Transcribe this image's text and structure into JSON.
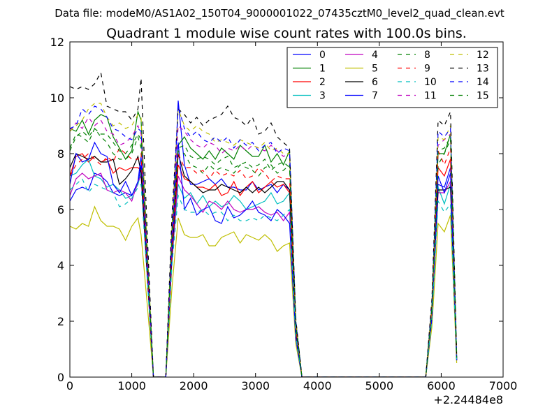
{
  "suptitle": "Data file: modeM0/AS1A02_150T04_9000001022_07435cztM0_level2_quad_clean.evt",
  "chart_data": {
    "type": "line",
    "title": "Quadrant 1 module wise count rates with 100.0s bins.",
    "xlabel": "",
    "ylabel": "",
    "xlim": [
      0,
      7000
    ],
    "ylim": [
      0,
      12
    ],
    "x_ticks": [
      "0",
      "1000",
      "2000",
      "3000",
      "4000",
      "5000",
      "6000",
      "7000"
    ],
    "y_ticks": [
      "0",
      "2",
      "4",
      "6",
      "8",
      "10",
      "12"
    ],
    "x_offset_label": "+2.24484e8",
    "grid": false,
    "legend_position": "top-right",
    "legend_columns": 4,
    "x": [
      0,
      100,
      200,
      300,
      400,
      500,
      600,
      700,
      800,
      900,
      1000,
      1100,
      1150,
      1250,
      1350,
      1550,
      1650,
      1750,
      1850,
      1950,
      2050,
      2150,
      2250,
      2350,
      2450,
      2550,
      2650,
      2750,
      2850,
      2950,
      3050,
      3150,
      3250,
      3350,
      3450,
      3550,
      3650,
      3750,
      5750,
      5850,
      5950,
      6050,
      6150,
      6250
    ],
    "series": [
      {
        "name": "0",
        "color": "#0000ff",
        "dash": "solid",
        "values": [
          6.3,
          6.7,
          6.8,
          6.7,
          7.3,
          7.2,
          7.0,
          6.6,
          6.5,
          6.6,
          6.5,
          6.9,
          7.6,
          3.9,
          0,
          0,
          4.5,
          9.9,
          7.6,
          6.9,
          6.9,
          7.0,
          7.1,
          6.9,
          7.1,
          6.8,
          6.8,
          6.7,
          6.7,
          7.0,
          6.7,
          6.8,
          6.9,
          6.6,
          6.9,
          6.7,
          1.6,
          0,
          0,
          2.4,
          6.9,
          6.8,
          7.5,
          0.6
        ]
      },
      {
        "name": "1",
        "color": "#008000",
        "dash": "solid",
        "values": [
          8.9,
          8.8,
          9.2,
          8.7,
          9.2,
          9.4,
          9.3,
          8.6,
          8.2,
          7.8,
          8.1,
          9.5,
          9.2,
          4.5,
          0,
          0,
          5.3,
          8.3,
          8.6,
          8.2,
          8.0,
          7.8,
          8.1,
          7.8,
          8.2,
          8.0,
          7.8,
          8.3,
          8.1,
          7.9,
          7.9,
          8.3,
          7.7,
          8.0,
          7.6,
          8.1,
          2.0,
          0,
          0,
          2.5,
          8.0,
          8.0,
          8.7,
          0.7
        ]
      },
      {
        "name": "2",
        "color": "#ff0000",
        "dash": "solid",
        "values": [
          7.2,
          7.9,
          8.0,
          7.7,
          7.9,
          7.7,
          7.8,
          7.3,
          7.5,
          7.4,
          7.5,
          7.5,
          7.4,
          3.8,
          0,
          0,
          4.4,
          7.6,
          7.1,
          7.0,
          6.8,
          6.8,
          6.7,
          6.9,
          6.5,
          6.6,
          7.0,
          6.5,
          6.8,
          7.0,
          6.6,
          6.8,
          7.0,
          6.8,
          6.9,
          6.6,
          1.7,
          0,
          0,
          2.3,
          7.5,
          7.2,
          7.8,
          0.6
        ]
      },
      {
        "name": "3",
        "color": "#00bfbf",
        "dash": "solid",
        "values": [
          7.2,
          7.3,
          7.6,
          7.8,
          7.2,
          7.1,
          6.8,
          6.9,
          6.7,
          6.4,
          6.5,
          6.9,
          7.3,
          3.7,
          0,
          0,
          4.2,
          6.9,
          6.4,
          6.6,
          6.2,
          6.5,
          6.1,
          6.3,
          6.1,
          6.2,
          6.5,
          6.3,
          6.0,
          6.1,
          6.2,
          6.3,
          6.6,
          6.2,
          6.3,
          6.6,
          1.6,
          0,
          0,
          2.2,
          6.8,
          6.2,
          6.9,
          0.6
        ]
      },
      {
        "name": "4",
        "color": "#bf00bf",
        "dash": "solid",
        "values": [
          6.5,
          7.1,
          7.3,
          7.1,
          7.2,
          7.3,
          6.7,
          6.6,
          6.7,
          6.6,
          6.3,
          7.0,
          7.2,
          3.6,
          0,
          0,
          4.2,
          7.2,
          6.7,
          6.5,
          6.2,
          5.9,
          6.3,
          6.2,
          6.0,
          6.3,
          6.0,
          5.9,
          6.0,
          6.0,
          6.1,
          5.9,
          5.8,
          5.9,
          5.6,
          5.9,
          1.5,
          0,
          0,
          2.2,
          6.6,
          6.6,
          7.0,
          0.6
        ]
      },
      {
        "name": "5",
        "color": "#bfbf00",
        "dash": "solid",
        "values": [
          5.4,
          5.3,
          5.5,
          5.4,
          6.1,
          5.6,
          5.4,
          5.4,
          5.3,
          4.9,
          5.4,
          5.7,
          5.1,
          2.6,
          0,
          0,
          3.2,
          5.7,
          5.1,
          5.0,
          5.0,
          5.1,
          4.7,
          4.7,
          5.0,
          5.1,
          5.2,
          4.8,
          5.1,
          5.0,
          4.9,
          5.1,
          4.9,
          4.5,
          4.7,
          4.8,
          1.2,
          0,
          0,
          1.8,
          5.5,
          5.2,
          5.8,
          0.5
        ]
      },
      {
        "name": "6",
        "color": "#000000",
        "dash": "solid",
        "values": [
          7.5,
          8.0,
          7.9,
          7.8,
          7.9,
          7.7,
          7.7,
          7.8,
          6.9,
          7.1,
          7.4,
          7.9,
          7.3,
          3.7,
          0,
          0,
          4.3,
          8.0,
          7.2,
          7.0,
          6.8,
          6.6,
          6.7,
          6.7,
          6.9,
          6.8,
          6.7,
          6.6,
          6.8,
          6.6,
          6.8,
          6.6,
          6.8,
          7.0,
          7.0,
          6.7,
          1.7,
          0,
          0,
          2.3,
          6.7,
          6.7,
          6.8,
          0.6
        ]
      },
      {
        "name": "7",
        "color": "#0000ff",
        "dash": "solid",
        "values": [
          6.9,
          8.0,
          7.7,
          7.8,
          8.4,
          8.0,
          7.9,
          6.9,
          6.6,
          7.0,
          6.5,
          7.0,
          7.9,
          4.0,
          0,
          0,
          4.5,
          8.4,
          6.0,
          6.4,
          5.8,
          6.0,
          6.1,
          5.6,
          5.5,
          6.1,
          5.7,
          5.8,
          6.0,
          6.3,
          5.9,
          5.8,
          5.6,
          6.0,
          5.8,
          5.5,
          1.4,
          0,
          0,
          2.1,
          7.2,
          6.6,
          7.3,
          0.6
        ]
      },
      {
        "name": "8",
        "color": "#008000",
        "dash": "dashed",
        "values": [
          8.2,
          8.7,
          8.6,
          8.4,
          8.9,
          8.6,
          8.4,
          8.0,
          7.8,
          7.8,
          8.0,
          8.6,
          8.2,
          4.2,
          0,
          0,
          4.9,
          8.1,
          8.0,
          7.6,
          7.5,
          7.3,
          7.6,
          7.4,
          7.5,
          7.4,
          7.3,
          7.6,
          7.5,
          7.4,
          7.2,
          7.5,
          7.6,
          7.3,
          7.4,
          7.6,
          1.9,
          0,
          0,
          2.5,
          7.6,
          8.0,
          8.5,
          0.7
        ]
      },
      {
        "name": "9",
        "color": "#ff0000",
        "dash": "dashed",
        "values": [
          7.2,
          7.6,
          7.8,
          8.0,
          7.8,
          7.6,
          7.9,
          7.7,
          8.2,
          8.0,
          7.8,
          7.8,
          8.0,
          4.0,
          0,
          0,
          4.6,
          8.0,
          7.5,
          7.5,
          7.3,
          7.4,
          7.1,
          7.4,
          7.2,
          7.3,
          7.2,
          7.4,
          7.1,
          7.2,
          7.5,
          7.3,
          7.0,
          7.2,
          7.1,
          7.1,
          1.8,
          0,
          0,
          2.4,
          8.1,
          7.6,
          8.2,
          0.7
        ]
      },
      {
        "name": "10",
        "color": "#00bfbf",
        "dash": "dashed",
        "values": [
          6.7,
          6.9,
          7.1,
          6.6,
          6.9,
          6.8,
          6.7,
          6.6,
          6.1,
          6.2,
          6.4,
          6.8,
          6.9,
          3.5,
          0,
          0,
          4.0,
          6.5,
          6.0,
          5.9,
          5.9,
          6.0,
          5.8,
          5.9,
          5.9,
          5.6,
          5.8,
          5.6,
          5.6,
          5.7,
          5.6,
          5.8,
          5.7,
          5.6,
          5.8,
          6.0,
          1.5,
          0,
          0,
          2.1,
          6.3,
          5.9,
          6.2,
          0.6
        ]
      },
      {
        "name": "11",
        "color": "#bf00bf",
        "dash": "dashed",
        "values": [
          8.8,
          9.1,
          8.9,
          9.3,
          9.0,
          9.2,
          8.8,
          8.7,
          8.3,
          8.4,
          8.6,
          9.0,
          8.7,
          4.4,
          0,
          0,
          5.1,
          9.0,
          8.8,
          8.5,
          8.3,
          8.2,
          8.4,
          8.3,
          8.0,
          8.2,
          8.1,
          8.3,
          8.1,
          8.3,
          8.2,
          8.1,
          8.3,
          8.1,
          7.9,
          8.0,
          2.0,
          0,
          0,
          2.6,
          8.3,
          8.5,
          8.7,
          0.7
        ]
      },
      {
        "name": "12",
        "color": "#bfbf00",
        "dash": "dashed",
        "values": [
          8.8,
          9.0,
          9.2,
          9.6,
          9.8,
          9.8,
          9.3,
          9.0,
          9.1,
          8.9,
          9.0,
          9.4,
          9.3,
          4.7,
          0,
          0,
          5.4,
          9.6,
          9.0,
          8.8,
          9.0,
          8.8,
          8.7,
          8.4,
          8.5,
          8.4,
          8.3,
          8.5,
          8.4,
          8.3,
          8.2,
          8.4,
          8.1,
          8.2,
          8.0,
          8.0,
          2.0,
          0,
          0,
          2.6,
          8.6,
          8.5,
          9.0,
          0.7
        ]
      },
      {
        "name": "13",
        "color": "#000000",
        "dash": "dashed",
        "values": [
          10.4,
          10.3,
          10.4,
          10.3,
          10.5,
          10.9,
          9.7,
          9.6,
          9.5,
          9.5,
          9.2,
          9.6,
          10.7,
          5.2,
          0,
          0,
          5.8,
          9.6,
          9.4,
          9.1,
          9.3,
          9.0,
          9.2,
          9.3,
          9.4,
          9.7,
          9.3,
          9.2,
          9.0,
          9.3,
          8.7,
          8.8,
          9.1,
          8.6,
          8.4,
          8.2,
          2.1,
          0,
          0,
          2.8,
          9.2,
          9.0,
          9.5,
          0.8
        ]
      },
      {
        "name": "14",
        "color": "#0000ff",
        "dash": "dashed",
        "values": [
          8.9,
          9.0,
          9.6,
          9.4,
          9.7,
          9.6,
          9.3,
          8.9,
          8.8,
          8.6,
          8.5,
          8.9,
          8.8,
          4.4,
          0,
          0,
          5.2,
          9.7,
          8.9,
          8.6,
          8.8,
          8.5,
          8.4,
          8.6,
          8.4,
          8.6,
          8.2,
          8.5,
          8.3,
          8.4,
          8.1,
          8.3,
          8.4,
          8.0,
          8.2,
          8.1,
          2.0,
          0,
          0,
          2.6,
          8.8,
          8.6,
          8.9,
          0.7
        ]
      },
      {
        "name": "15",
        "color": "#008000",
        "dash": "dashed",
        "values": [
          8.1,
          8.6,
          8.8,
          8.6,
          8.9,
          8.7,
          8.7,
          8.4,
          8.1,
          8.0,
          8.3,
          8.7,
          8.5,
          4.3,
          0,
          0,
          5.0,
          8.2,
          8.3,
          7.9,
          7.8,
          7.9,
          7.8,
          7.6,
          7.8,
          7.9,
          7.5,
          7.6,
          7.7,
          7.5,
          7.6,
          7.8,
          7.4,
          7.6,
          7.7,
          7.5,
          1.9,
          0,
          0,
          2.5,
          8.1,
          8.2,
          8.6,
          0.7
        ]
      }
    ]
  }
}
